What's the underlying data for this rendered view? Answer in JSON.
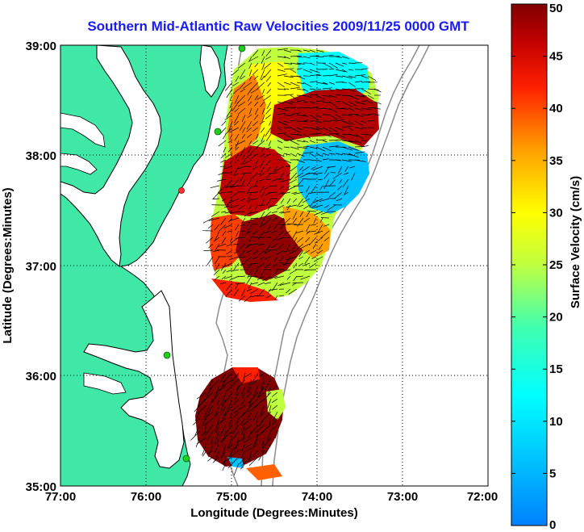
{
  "title": "Southern Mid-Atlantic Raw Velocities 2009/11/25 0000 GMT",
  "x_axis": {
    "label": "Longitude (Degrees:Minutes)",
    "ticks": [
      "77:00",
      "76:00",
      "75:00",
      "74:00",
      "73:00",
      "72:00"
    ]
  },
  "y_axis": {
    "label": "Latitude (Degrees:Minutes)",
    "ticks": [
      "39:00",
      "38:00",
      "37:00",
      "36:00",
      "35:00"
    ]
  },
  "colorbar": {
    "label": "Surface Velocity (cm/s)",
    "ticks": [
      "50",
      "45",
      "40",
      "35",
      "30",
      "25",
      "20",
      "15",
      "10",
      "5",
      "0"
    ],
    "range": [
      0,
      50
    ],
    "colormap": "jet"
  },
  "colors": {
    "land": "#40e8a8",
    "coastline": "#000000",
    "title": "#1a1aff",
    "station": "#22cc22",
    "station_alert": "#ff3333"
  },
  "chart_data": {
    "type": "heatmap",
    "description_free": true,
    "lon_range": [
      -77,
      -72
    ],
    "lat_range": [
      35,
      39
    ],
    "grid": true,
    "vector_field": true,
    "units": "cm/s",
    "regions": [
      {
        "lon": [
          -75.15,
          -73.4
        ],
        "lat": [
          36.7,
          39.0
        ],
        "speed_range": [
          5,
          50
        ]
      },
      {
        "lon": [
          -75.4,
          -74.35
        ],
        "lat": [
          35.1,
          36.3
        ],
        "speed_range": [
          35,
          50
        ]
      }
    ]
  }
}
